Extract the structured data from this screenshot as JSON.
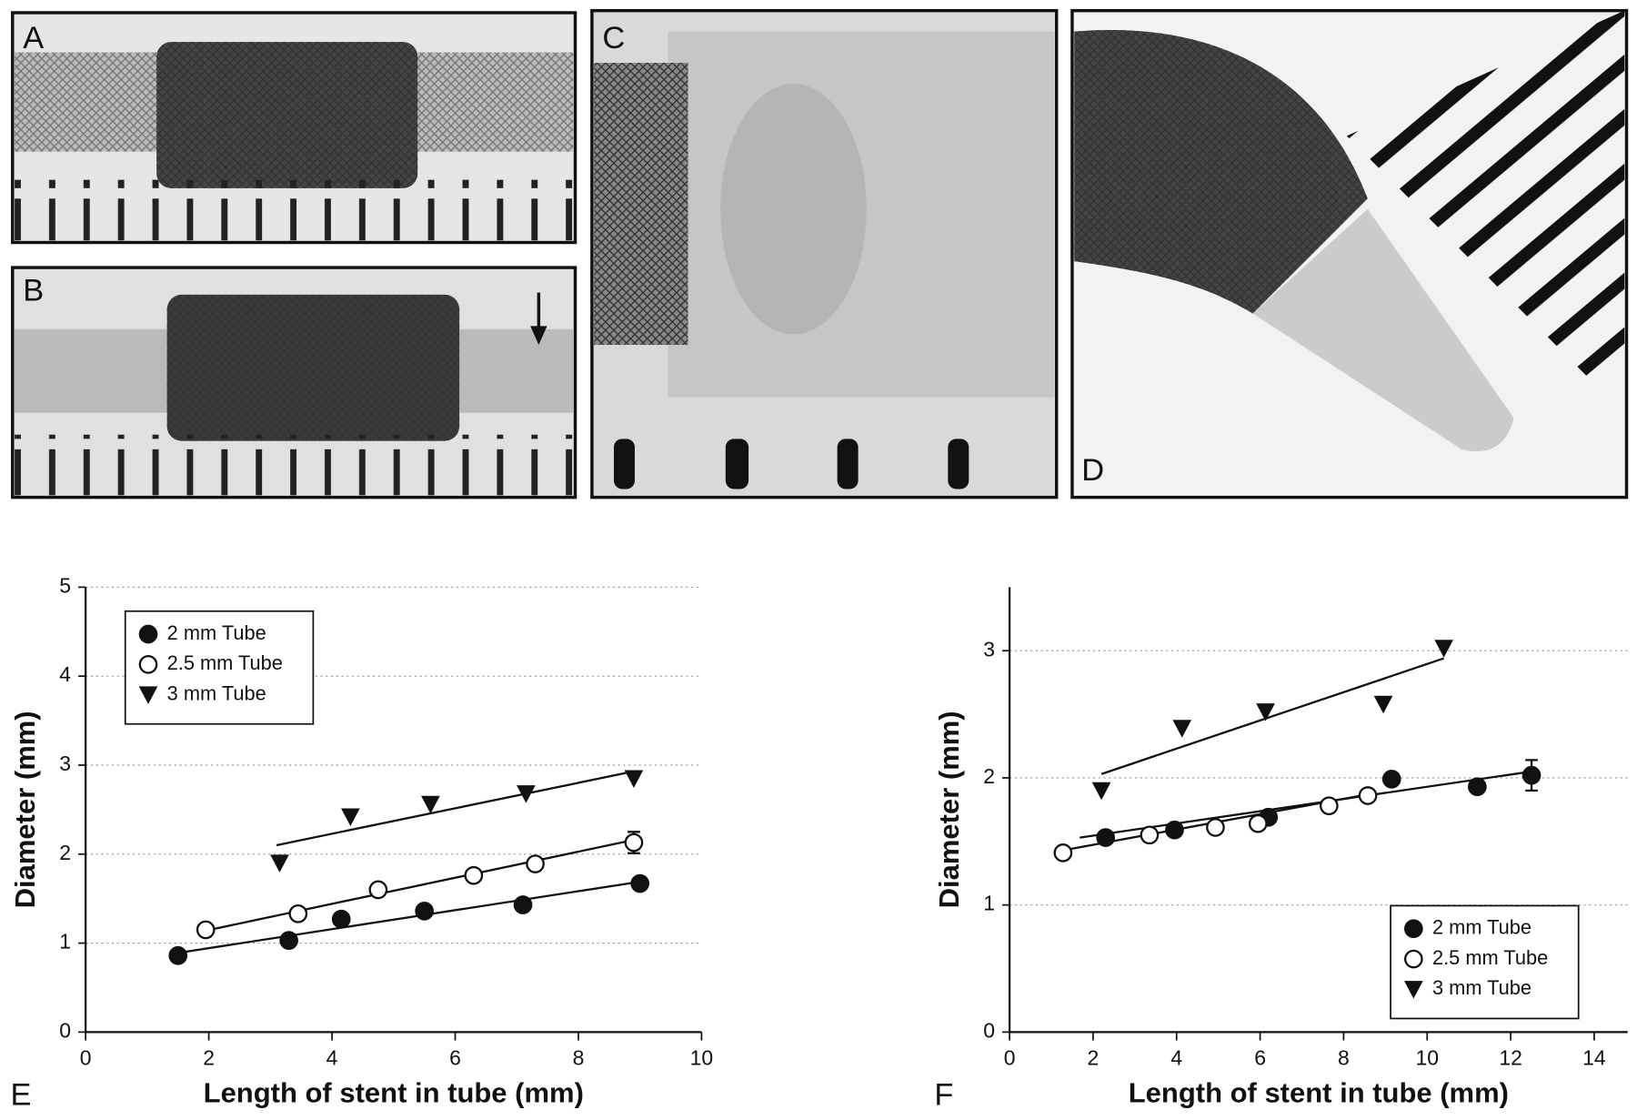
{
  "panel_labels": [
    "A",
    "B",
    "C",
    "D"
  ],
  "chart_data": [
    {
      "type": "scatter",
      "label": "E",
      "xlabel": "Length of stent in tube (mm)",
      "ylabel": "Diameter (mm)",
      "xlim": [
        0,
        10
      ],
      "ylim": [
        0,
        5
      ],
      "xticks": [
        0,
        2,
        4,
        6,
        8,
        10
      ],
      "yticks": [
        0,
        1,
        2,
        3,
        4,
        5
      ],
      "grid": true,
      "legend": "upper left",
      "series": [
        {
          "name": "2 mm Tube",
          "color": "#111111",
          "marker": "filled-circle",
          "x": [
            1.5,
            3.3,
            4.15,
            5.5,
            7.1,
            9.0
          ],
          "values": [
            0.86,
            1.03,
            1.27,
            1.36,
            1.43,
            1.67
          ],
          "errors": [
            null,
            null,
            null,
            null,
            null,
            null
          ],
          "fit_x": [
            1.5,
            9.0
          ],
          "fit_y": [
            0.89,
            1.69
          ]
        },
        {
          "name": "2.5 mm Tube",
          "color": "#111111",
          "marker": "open-circle",
          "x": [
            1.95,
            3.45,
            4.75,
            6.3,
            7.3,
            8.9
          ],
          "values": [
            1.15,
            1.33,
            1.6,
            1.76,
            1.89,
            2.13
          ],
          "errors": [
            null,
            null,
            null,
            null,
            null,
            0.12
          ],
          "fit_x": [
            1.95,
            8.9
          ],
          "fit_y": [
            1.14,
            2.16
          ]
        },
        {
          "name": "3 mm Tube",
          "color": "#111111",
          "marker": "triangle-down",
          "x": [
            3.15,
            4.3,
            5.6,
            7.15,
            8.9
          ],
          "values": [
            1.9,
            2.42,
            2.56,
            2.68,
            2.85
          ],
          "errors": [
            null,
            null,
            null,
            null,
            null
          ],
          "fit_x": [
            3.1,
            8.9
          ],
          "fit_y": [
            2.1,
            2.93
          ]
        }
      ]
    },
    {
      "type": "scatter",
      "label": "F",
      "xlabel": "Length of stent in tube (mm)",
      "ylabel": "Diameter (mm)",
      "xlim": [
        0,
        14.8
      ],
      "ylim": [
        0,
        3.5
      ],
      "xticks": [
        0,
        2,
        4,
        6,
        8,
        10,
        12,
        14
      ],
      "yticks": [
        0,
        1,
        2,
        3
      ],
      "grid": true,
      "legend": "lower right",
      "series": [
        {
          "name": "2 mm Tube",
          "color": "#111111",
          "marker": "filled-circle",
          "x": [
            2.3,
            3.95,
            6.2,
            9.15,
            11.2,
            12.5
          ],
          "values": [
            1.53,
            1.59,
            1.69,
            1.99,
            1.93,
            2.02
          ],
          "errors": [
            null,
            null,
            null,
            null,
            null,
            0.12
          ],
          "fit_x": [
            1.68,
            12.5
          ],
          "fit_y": [
            1.53,
            2.05
          ]
        },
        {
          "name": "2.5 mm Tube",
          "color": "#111111",
          "marker": "open-circle",
          "x": [
            1.28,
            3.35,
            4.93,
            5.95,
            7.65,
            8.58
          ],
          "values": [
            1.41,
            1.55,
            1.61,
            1.64,
            1.78,
            1.86
          ],
          "errors": [
            null,
            null,
            null,
            null,
            null,
            null
          ],
          "fit_x": [
            1.28,
            8.58
          ],
          "fit_y": [
            1.43,
            1.87
          ]
        },
        {
          "name": "3 mm Tube",
          "color": "#111111",
          "marker": "triangle-down",
          "x": [
            2.2,
            4.13,
            6.13,
            8.95,
            10.4
          ],
          "values": [
            1.9,
            2.39,
            2.52,
            2.58,
            3.02
          ],
          "errors": [
            null,
            null,
            null,
            null,
            null
          ],
          "fit_x": [
            2.2,
            10.4
          ],
          "fit_y": [
            2.03,
            2.94
          ]
        }
      ]
    }
  ]
}
